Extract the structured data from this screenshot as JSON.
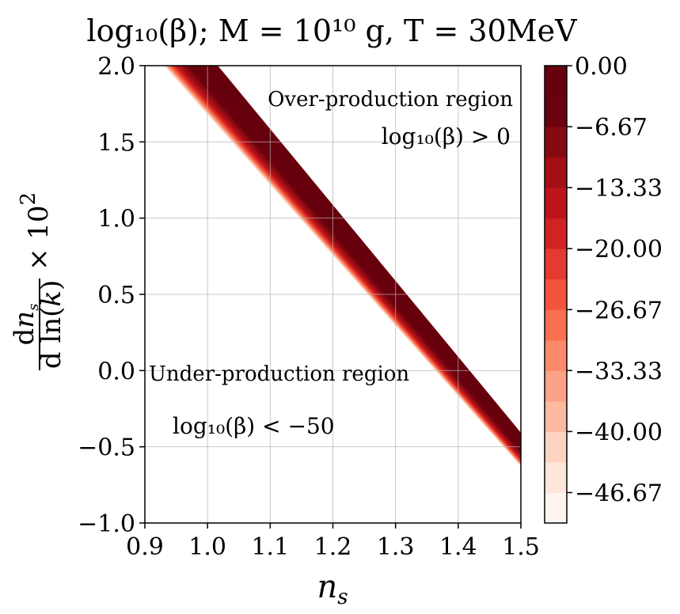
{
  "chart_data": {
    "type": "contourf",
    "title": "log₁₀(β); M = 10¹⁰ g, T = 30MeV",
    "xlabel": "n_s",
    "ylabel": "dn_s / d ln(k) × 10²",
    "xlim": [
      0.9,
      1.5
    ],
    "ylim": [
      -1.0,
      2.0
    ],
    "x_ticks": [
      "0.9",
      "1.0",
      "1.1",
      "1.2",
      "1.3",
      "1.4",
      "1.5"
    ],
    "y_ticks": [
      "−1.0",
      "−0.5",
      "0.0",
      "0.5",
      "1.0",
      "1.5",
      "2.0"
    ],
    "grid": true,
    "colorbar": {
      "range": [
        -50,
        0
      ],
      "n_levels": 15,
      "tick_values": [
        0.0,
        -6.67,
        -13.33,
        -20.0,
        -26.67,
        -33.33,
        -40.0,
        -46.67
      ],
      "tick_labels": [
        "0.00",
        "−6.67",
        "−13.33",
        "−20.00",
        "−26.67",
        "−33.33",
        "−40.00",
        "−46.67"
      ],
      "colors": [
        "#fff5f0",
        "#fee6dc",
        "#fdd3c1",
        "#fcbba1",
        "#fca286",
        "#fc8a6a",
        "#f8704f",
        "#f2543d",
        "#e43a2f",
        "#d02422",
        "#bc141a",
        "#a30f15",
        "#870a11",
        "#6b010e",
        "#67000d"
      ]
    },
    "band": {
      "description_free": true,
      "over_edge": [
        [
          0.961,
          2.0
        ],
        [
          1.5,
          -0.45
        ]
      ],
      "lower_edge": [
        [
          0.93,
          2.0
        ],
        [
          1.5,
          -0.63
        ]
      ],
      "saturated_upper_edge": [
        [
          1.016,
          2.0
        ],
        [
          1.5,
          -0.41
        ]
      ]
    },
    "annotations": {
      "over_label": "Over-production region",
      "over_formula": "log₁₀(β) > 0",
      "under_label": "Under-production region",
      "under_formula": "log₁₀(β) < −50"
    }
  }
}
